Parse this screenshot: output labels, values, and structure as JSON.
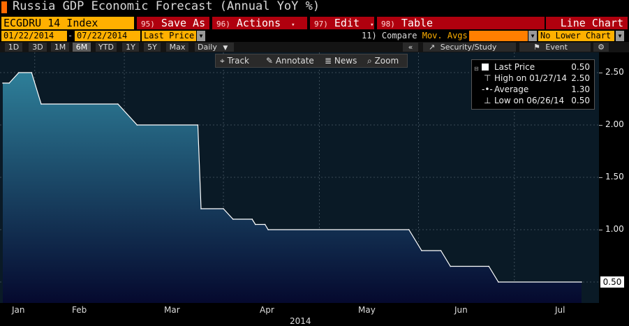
{
  "title": "Russia GDP Economic Forecast (Annual YoY %)",
  "row1": {
    "ticker": "ECGDRU 14 Index",
    "buttons": [
      {
        "num": "95)",
        "label": "Save As",
        "caret": ""
      },
      {
        "num": "96)",
        "label": "Actions",
        "caret": "▾"
      },
      {
        "num": "97)",
        "label": "Edit",
        "caret": "▾"
      },
      {
        "num": "98)",
        "label": "Table",
        "caret": ""
      }
    ],
    "chart_mode": "Line Chart"
  },
  "row2": {
    "start_date": "01/22/2014",
    "dash": "-",
    "end_date": "07/22/2014",
    "field": "Last Price",
    "compare_num": "11)",
    "compare_label": "Compare",
    "mov_avgs": "Mov. Avgs",
    "lower_chart": "No Lower Chart"
  },
  "row3": {
    "periods": [
      "1D",
      "3D",
      "1M",
      "6M",
      "YTD",
      "1Y",
      "5Y",
      "Max"
    ],
    "active_period": "6M",
    "frequency": "Daily",
    "collapse": "«",
    "security_study": "Security/Study",
    "event": "Event",
    "settings_icon": "gear-icon"
  },
  "floating_toolbar": {
    "track": "Track",
    "annotate": "Annotate",
    "news": "News",
    "zoom": "Zoom"
  },
  "legend": {
    "last_price_label": "Last Price",
    "last_price_value": "0.50",
    "high_label": "High on 01/27/14",
    "high_value": "2.50",
    "average_label": "Average",
    "average_value": "1.30",
    "low_label": "Low on 06/26/14",
    "low_value": "0.50"
  },
  "colors": {
    "background": "#000000",
    "plot_top": "#2e7f99",
    "plot_bottom": "#05092e",
    "line": "#ffffff",
    "amber": "#ffb000",
    "red_button": "#b0000e"
  },
  "chart_data": {
    "type": "area",
    "title": "Russia GDP Economic Forecast (Annual YoY %)",
    "series_name": "Last Price",
    "x_label": "2014",
    "x_ticks": [
      "Jan",
      "Feb",
      "Mar",
      "Apr",
      "May",
      "Jun",
      "Jul"
    ],
    "y_ticks": [
      "0.50",
      "1.00",
      "1.50",
      "2.00",
      "2.50"
    ],
    "ylim": [
      0.3,
      2.6
    ],
    "xlim": [
      "2014-01-22",
      "2014-07-22"
    ],
    "y_axis_side": "right",
    "grid": true,
    "legend_position": "top-right",
    "last_value_label": "0.50",
    "points": [
      {
        "date": "2014-01-22",
        "value": 2.4
      },
      {
        "date": "2014-01-24",
        "value": 2.4
      },
      {
        "date": "2014-01-27",
        "value": 2.5
      },
      {
        "date": "2014-01-31",
        "value": 2.5
      },
      {
        "date": "2014-02-03",
        "value": 2.2
      },
      {
        "date": "2014-02-27",
        "value": 2.2
      },
      {
        "date": "2014-03-05",
        "value": 2.0
      },
      {
        "date": "2014-03-24",
        "value": 2.0
      },
      {
        "date": "2014-03-25",
        "value": 1.2
      },
      {
        "date": "2014-04-01",
        "value": 1.2
      },
      {
        "date": "2014-04-04",
        "value": 1.1
      },
      {
        "date": "2014-04-10",
        "value": 1.1
      },
      {
        "date": "2014-04-11",
        "value": 1.05
      },
      {
        "date": "2014-04-14",
        "value": 1.05
      },
      {
        "date": "2014-04-15",
        "value": 1.0
      },
      {
        "date": "2014-05-29",
        "value": 1.0
      },
      {
        "date": "2014-06-02",
        "value": 0.8
      },
      {
        "date": "2014-06-08",
        "value": 0.8
      },
      {
        "date": "2014-06-11",
        "value": 0.65
      },
      {
        "date": "2014-06-23",
        "value": 0.65
      },
      {
        "date": "2014-06-26",
        "value": 0.5
      },
      {
        "date": "2014-07-22",
        "value": 0.5
      }
    ]
  }
}
